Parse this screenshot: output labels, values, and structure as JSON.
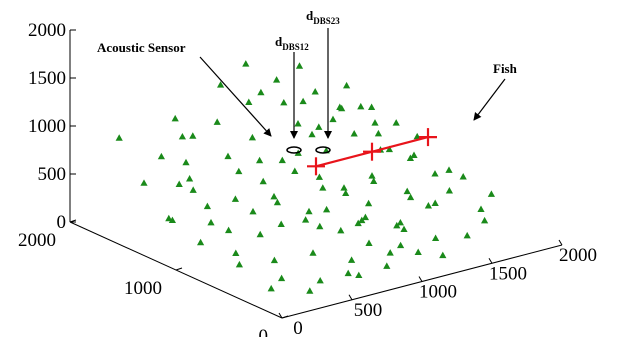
{
  "chart_data": {
    "type": "scatter",
    "title": "",
    "xlabel": "",
    "ylabel": "",
    "zlabel": "",
    "xlim": [
      0,
      2000
    ],
    "ylim": [
      0,
      2000
    ],
    "zlim": [
      0,
      2000
    ],
    "x_ticks": [
      "0",
      "500",
      "1000",
      "1500",
      "2000"
    ],
    "y_ticks": [
      "0",
      "1000",
      "2000"
    ],
    "z_ticks": [
      "0",
      "500",
      "1000",
      "1500",
      "2000"
    ],
    "grid": false,
    "colors": {
      "fish": "#1a8a1a",
      "sensor": "#e8141b",
      "axis": "#000000"
    },
    "series": [
      {
        "name": "Fish",
        "marker": "triangle",
        "points": [
          [
            1180,
            1900,
            1250
          ],
          [
            1450,
            1750,
            1200
          ],
          [
            1050,
            1700,
            1000
          ],
          [
            1400,
            1650,
            900
          ],
          [
            1250,
            1850,
            950
          ],
          [
            1600,
            1550,
            800
          ],
          [
            1700,
            1400,
            850
          ],
          [
            1500,
            1300,
            700
          ],
          [
            1800,
            1500,
            600
          ],
          [
            1650,
            1250,
            500
          ],
          [
            1350,
            1500,
            650
          ],
          [
            1550,
            1700,
            550
          ],
          [
            1900,
            1600,
            400
          ],
          [
            1750,
            1100,
            450
          ],
          [
            1450,
            1050,
            350
          ],
          [
            1300,
            900,
            250
          ],
          [
            1600,
            900,
            200
          ],
          [
            1200,
            1200,
            300
          ],
          [
            1100,
            1450,
            500
          ],
          [
            1000,
            1600,
            700
          ],
          [
            900,
            1800,
            800
          ],
          [
            850,
            1300,
            450
          ],
          [
            950,
            1000,
            250
          ],
          [
            1150,
            800,
            150
          ],
          [
            1350,
            700,
            100
          ],
          [
            1500,
            600,
            300
          ],
          [
            1700,
            800,
            150
          ],
          [
            1850,
            1000,
            300
          ],
          [
            1950,
            1300,
            500
          ],
          [
            1650,
            600,
            400
          ],
          [
            1250,
            500,
            200
          ],
          [
            1050,
            600,
            350
          ],
          [
            800,
            700,
            300
          ],
          [
            700,
            1000,
            500
          ],
          [
            600,
            1200,
            700
          ],
          [
            750,
            1500,
            650
          ],
          [
            650,
            1700,
            800
          ],
          [
            500,
            1600,
            900
          ],
          [
            400,
            1400,
            600
          ],
          [
            550,
            1000,
            400
          ],
          [
            450,
            800,
            300
          ],
          [
            300,
            1100,
            500
          ],
          [
            250,
            1300,
            650
          ],
          [
            350,
            1600,
            750
          ],
          [
            200,
            1800,
            900
          ],
          [
            150,
            1500,
            600
          ],
          [
            100,
            1200,
            400
          ],
          [
            300,
            900,
            350
          ],
          [
            200,
            700,
            250
          ],
          [
            400,
            600,
            150
          ],
          [
            600,
            500,
            200
          ],
          [
            800,
            400,
            100
          ],
          [
            1000,
            300,
            150
          ],
          [
            700,
            300,
            50
          ],
          [
            900,
            200,
            100
          ],
          [
            500,
            300,
            50
          ],
          [
            300,
            400,
            100
          ],
          [
            150,
            600,
            200
          ],
          [
            100,
            900,
            300
          ],
          [
            50,
            1100,
            450
          ],
          [
            1100,
            1100,
            500
          ],
          [
            1300,
            1300,
            600
          ],
          [
            1400,
            1000,
            450
          ],
          [
            1200,
            1000,
            400
          ],
          [
            1000,
            1200,
            550
          ],
          [
            900,
            1400,
            600
          ],
          [
            800,
            1100,
            350
          ],
          [
            1000,
            900,
            300
          ],
          [
            1100,
            700,
            250
          ],
          [
            1300,
            600,
            200
          ],
          [
            1500,
            800,
            350
          ],
          [
            1700,
            1000,
            550
          ],
          [
            1800,
            1300,
            700
          ],
          [
            1600,
            1100,
            600
          ],
          [
            1900,
            800,
            350
          ],
          [
            1950,
            600,
            250
          ],
          [
            1800,
            500,
            200
          ],
          [
            1400,
            400,
            100
          ],
          [
            1200,
            300,
            80
          ],
          [
            1000,
            500,
            150
          ],
          [
            600,
            800,
            350
          ],
          [
            500,
            1100,
            500
          ],
          [
            350,
            1300,
            550
          ],
          [
            250,
            1000,
            400
          ],
          [
            450,
            1500,
            700
          ],
          [
            600,
            1800,
            950
          ],
          [
            1000,
            1900,
            1100
          ],
          [
            1300,
            1700,
            900
          ],
          [
            1700,
            1700,
            700
          ],
          [
            1900,
            1900,
            750
          ],
          [
            1100,
            1300,
            650
          ],
          [
            1250,
            1500,
            800
          ],
          [
            1500,
            1500,
            750
          ],
          [
            850,
            900,
            250
          ],
          [
            1150,
            400,
            120
          ],
          [
            1850,
            1700,
            650
          ],
          [
            1600,
            1800,
            850
          ],
          [
            1400,
            1900,
            1000
          ],
          [
            150,
            300,
            100
          ],
          [
            350,
            200,
            50
          ],
          [
            700,
            200,
            80
          ],
          [
            1300,
            200,
            60
          ],
          [
            1550,
            300,
            120
          ],
          [
            1750,
            400,
            150
          ],
          [
            1950,
            1000,
            300
          ],
          [
            1250,
            1050,
            300
          ],
          [
            950,
            700,
            200
          ]
        ]
      },
      {
        "name": "Acoustic Sensor",
        "marker": "plus",
        "points": [
          [
            1000,
            1000,
            700
          ],
          [
            1400,
            1000,
            700
          ],
          [
            1800,
            1000,
            700
          ]
        ]
      }
    ],
    "annotations": [
      {
        "id": "acoustic",
        "text": "Acoustic Sensor"
      },
      {
        "id": "dbs12",
        "main": "d",
        "sub": "DBS12"
      },
      {
        "id": "dbs23",
        "main": "d",
        "sub": "DBS23"
      },
      {
        "id": "fish",
        "text": "Fish"
      }
    ]
  }
}
